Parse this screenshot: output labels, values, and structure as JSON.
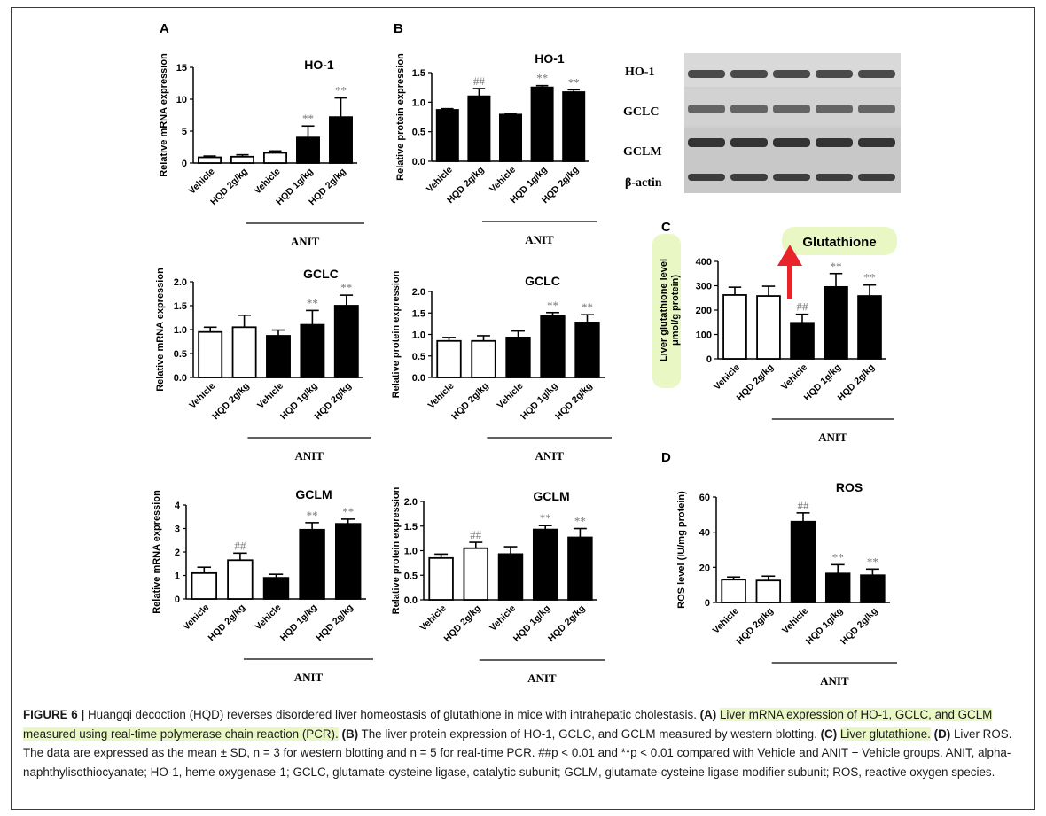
{
  "panels": [
    {
      "letter": "A"
    },
    {
      "letter": "B"
    },
    {
      "letter": "C"
    },
    {
      "letter": "D"
    }
  ],
  "colors": {
    "vehicle_bar": "#ffffff",
    "anit_bar": "#000000",
    "arrow": "#e8242a",
    "highlight": "#e8f7c4"
  },
  "blot": {
    "labels": [
      "HO-1",
      "GCLC",
      "GCLM",
      "β-actin"
    ]
  },
  "callout": {
    "label": "Glutathione"
  },
  "chart_data": [
    {
      "id": "A1",
      "panel": "A",
      "type": "bar",
      "title": "HO-1",
      "ylabel": "Relative mRNA expression",
      "categories": [
        "Vehicle",
        "HQD 2g/kg",
        "Vehicle",
        "HQD 1g/kg",
        "HQD 2g/kg"
      ],
      "values": [
        0.9,
        1.0,
        1.6,
        4.0,
        7.2
      ],
      "errors": [
        0.2,
        0.3,
        0.3,
        1.8,
        3.0
      ],
      "ylim": [
        0,
        15
      ],
      "yticks": [
        0,
        5,
        10,
        15
      ],
      "annotations": [
        "",
        "",
        "",
        "**",
        "**"
      ],
      "group_label": "ANIT",
      "fill": [
        "white",
        "white",
        "white",
        "black",
        "black"
      ]
    },
    {
      "id": "A2",
      "panel": "A",
      "type": "bar",
      "title": "GCLC",
      "ylabel": "Relative mRNA expression",
      "categories": [
        "Vehicle",
        "HQD 2g/kg",
        "Vehicle",
        "HQD 1g/kg",
        "HQD 2g/kg"
      ],
      "values": [
        0.95,
        1.05,
        0.87,
        1.1,
        1.5
      ],
      "errors": [
        0.1,
        0.25,
        0.12,
        0.3,
        0.22
      ],
      "ylim": [
        0,
        2
      ],
      "yticks": [
        0.0,
        0.5,
        1.0,
        1.5,
        2.0
      ],
      "tick_decimals": 1,
      "annotations": [
        "",
        "",
        "",
        "**",
        "**"
      ],
      "group_label": "ANIT",
      "fill": [
        "white",
        "white",
        "black",
        "black",
        "black"
      ]
    },
    {
      "id": "A3",
      "panel": "A",
      "type": "bar",
      "title": "GCLM",
      "ylabel": "Relative mRNA expression",
      "categories": [
        "Vehicle",
        "HQD 2g/kg",
        "Vehicle",
        "HQD 1g/kg",
        "HQD 2g/kg"
      ],
      "values": [
        1.1,
        1.65,
        0.9,
        2.95,
        3.2
      ],
      "errors": [
        0.25,
        0.3,
        0.15,
        0.3,
        0.2
      ],
      "ylim": [
        0,
        4
      ],
      "yticks": [
        0,
        1,
        2,
        3,
        4
      ],
      "annotations": [
        "",
        "##",
        "",
        "**",
        "**"
      ],
      "group_label": "ANIT",
      "fill": [
        "white",
        "white",
        "black",
        "black",
        "black"
      ]
    },
    {
      "id": "B1",
      "panel": "B",
      "type": "bar",
      "title": "HO-1",
      "ylabel": "Relative protein expression",
      "categories": [
        "Vehicle",
        "HQD 2g/kg",
        "Vehicle",
        "HQD 1g/kg",
        "HQD 2g/kg"
      ],
      "values": [
        0.87,
        1.1,
        0.79,
        1.25,
        1.17
      ],
      "errors": [
        0.02,
        0.13,
        0.02,
        0.03,
        0.04
      ],
      "ylim": [
        0,
        1.5
      ],
      "yticks": [
        0.0,
        0.5,
        1.0,
        1.5
      ],
      "tick_decimals": 1,
      "annotations": [
        "",
        "##",
        "",
        "**",
        "**"
      ],
      "group_label": "ANIT",
      "fill": [
        "black",
        "black",
        "black",
        "black",
        "black"
      ]
    },
    {
      "id": "B2",
      "panel": "B",
      "type": "bar",
      "title": "GCLC",
      "ylabel": "Relative protein expression",
      "categories": [
        "Vehicle",
        "HQD 2g/kg",
        "Vehicle",
        "HQD 1g/kg",
        "HQD 2g/kg"
      ],
      "values": [
        0.85,
        0.85,
        0.93,
        1.43,
        1.28
      ],
      "errors": [
        0.08,
        0.12,
        0.15,
        0.08,
        0.18
      ],
      "ylim": [
        0,
        2
      ],
      "yticks": [
        0.0,
        0.5,
        1.0,
        1.5,
        2.0
      ],
      "tick_decimals": 1,
      "annotations": [
        "",
        "",
        "",
        "**",
        "**"
      ],
      "group_label": "ANIT",
      "fill": [
        "white",
        "white",
        "black",
        "black",
        "black"
      ]
    },
    {
      "id": "B3",
      "panel": "B",
      "type": "bar",
      "title": "GCLM",
      "ylabel": "Relative protein expression",
      "categories": [
        "Vehicle",
        "HQD 2g/kg",
        "Vehicle",
        "HQD 1g/kg",
        "HQD 2g/kg"
      ],
      "values": [
        0.85,
        1.05,
        0.93,
        1.43,
        1.27
      ],
      "errors": [
        0.08,
        0.12,
        0.15,
        0.08,
        0.18
      ],
      "ylim": [
        0,
        2
      ],
      "yticks": [
        0.0,
        0.5,
        1.0,
        1.5,
        2.0
      ],
      "tick_decimals": 1,
      "annotations": [
        "",
        "##",
        "",
        "**",
        "**"
      ],
      "group_label": "ANIT",
      "fill": [
        "white",
        "white",
        "black",
        "black",
        "black"
      ]
    },
    {
      "id": "C",
      "panel": "C",
      "type": "bar",
      "title": "",
      "ylabel": "Liver glutathione level\nμmol/g protein)",
      "categories": [
        "Vehicle",
        "HQD 2g/kg",
        "Vehicle",
        "HQD 1g/kg",
        "HQD 2g/kg"
      ],
      "values": [
        262,
        258,
        148,
        295,
        258
      ],
      "errors": [
        32,
        40,
        35,
        55,
        45
      ],
      "ylim": [
        0,
        400
      ],
      "yticks": [
        0,
        100,
        200,
        300,
        400
      ],
      "annotations": [
        "",
        "",
        "##",
        "**",
        "**"
      ],
      "group_label": "ANIT",
      "fill": [
        "white",
        "white",
        "black",
        "black",
        "black"
      ]
    },
    {
      "id": "D",
      "panel": "D",
      "type": "bar",
      "title": "ROS",
      "ylabel": "ROS level (IU/mg protein)",
      "categories": [
        "Vehicle",
        "HQD 2g/kg",
        "Vehicle",
        "HQD 1g/kg",
        "HQD 2g/kg"
      ],
      "values": [
        13,
        12.5,
        46,
        16.5,
        15.5
      ],
      "errors": [
        1.5,
        2.5,
        5,
        5,
        3.5
      ],
      "ylim": [
        0,
        60
      ],
      "yticks": [
        0,
        20,
        40,
        60
      ],
      "annotations": [
        "",
        "",
        "##",
        "**",
        "**"
      ],
      "group_label": "ANIT",
      "fill": [
        "white",
        "white",
        "black",
        "black",
        "black"
      ]
    }
  ],
  "caption": {
    "fig_label": "FIGURE 6 |",
    "t1": " Huangqi decoction (HQD) reverses disordered liver homeostasis of glutathione in mice with intrahepatic cholestasis. ",
    "a_ref": "(A)",
    "a_text": "Liver mRNA expression of HO-1, GCLC, and GCLM measured using real-time polymerase chain reaction (PCR).",
    "b_ref": "(B)",
    "b_text": " The liver protein expression of HO-1, GCLC, and GCLM measured by western blotting. ",
    "c_ref": "(C)",
    "c_text": "Liver glutathione.",
    "d_ref": "(D)",
    "d_text": " Liver ROS. The data are expressed as the mean ± SD, n = 3 for western blotting and n = 5 for real-time PCR. ##p < 0.01 and **p < 0.01 compared with Vehicle and ANIT + Vehicle groups. ANIT, alpha-naphthylisothiocyanate; HO-1, heme oxygenase-1; GCLC, glutamate-cysteine ligase, catalytic subunit; GCLM, glutamate-cysteine ligase modifier subunit; ROS, reactive oxygen species."
  }
}
